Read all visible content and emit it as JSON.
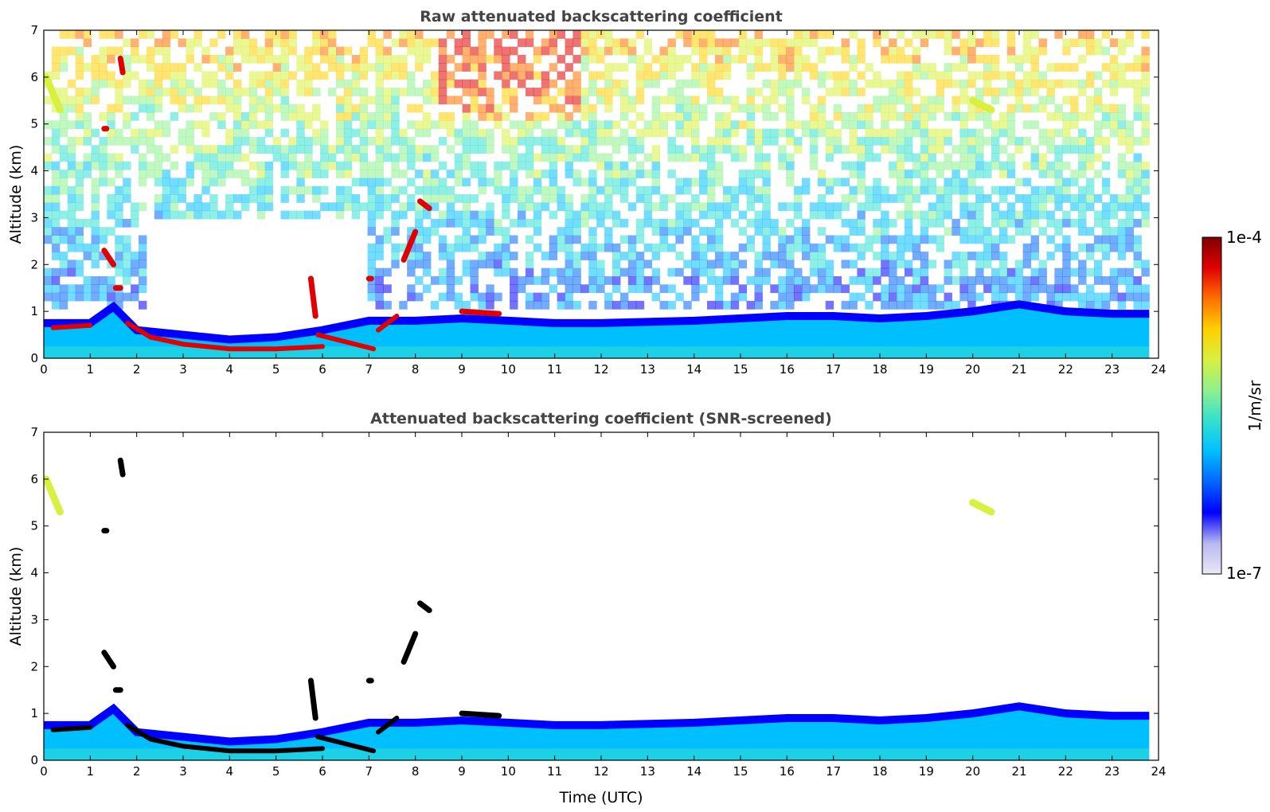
{
  "colors": {
    "colormap": [
      "#e8e8f8",
      "#b8b8f0",
      "#0000ff",
      "#0066ff",
      "#00bfff",
      "#33e0d0",
      "#8ef08e",
      "#d8f040",
      "#ffd000",
      "#ff7000",
      "#e00000",
      "#800000"
    ],
    "below_threshold": "#000000",
    "background": "#ffffff"
  },
  "chart_data": [
    {
      "type": "heatmap",
      "title": "Raw attenuated backscattering coefficient",
      "xlabel": "",
      "ylabel": "Altitude (km)",
      "xlim": [
        0,
        24
      ],
      "ylim": [
        0,
        7
      ],
      "x_ticks": [
        "0",
        "1",
        "2",
        "3",
        "4",
        "5",
        "6",
        "7",
        "8",
        "9",
        "10",
        "11",
        "12",
        "13",
        "14",
        "15",
        "16",
        "17",
        "18",
        "19",
        "20",
        "21",
        "22",
        "23",
        "24"
      ],
      "y_ticks": [
        "0",
        "1",
        "2",
        "3",
        "4",
        "5",
        "6",
        "7"
      ],
      "data_extent_hours": [
        0,
        23.8
      ],
      "boundary_layer_top_km": [
        [
          0,
          0.75
        ],
        [
          1,
          0.75
        ],
        [
          1.5,
          1.1
        ],
        [
          2,
          0.6
        ],
        [
          3,
          0.5
        ],
        [
          4,
          0.4
        ],
        [
          5,
          0.45
        ],
        [
          6,
          0.6
        ],
        [
          7,
          0.8
        ],
        [
          8,
          0.8
        ],
        [
          9,
          0.85
        ],
        [
          10,
          0.8
        ],
        [
          11,
          0.75
        ],
        [
          12,
          0.75
        ],
        [
          14,
          0.8
        ],
        [
          16,
          0.9
        ],
        [
          17,
          0.9
        ],
        [
          18,
          0.85
        ],
        [
          19,
          0.9
        ],
        [
          20,
          1.0
        ],
        [
          21,
          1.15
        ],
        [
          22,
          1.0
        ],
        [
          23,
          0.95
        ],
        [
          23.8,
          0.95
        ]
      ],
      "features": [
        {
          "kind": "aerosol_layer",
          "points_km": [
            [
              0.2,
              0.65
            ],
            [
              1.0,
              0.7
            ]
          ]
        },
        {
          "kind": "aerosol_layer",
          "points_km": [
            [
              1.8,
              0.75
            ],
            [
              2.3,
              0.45
            ],
            [
              3,
              0.3
            ],
            [
              4,
              0.2
            ],
            [
              5,
              0.2
            ],
            [
              6,
              0.25
            ]
          ]
        },
        {
          "kind": "aerosol_layer",
          "points_km": [
            [
              5.9,
              0.5
            ],
            [
              6.5,
              0.35
            ],
            [
              7.1,
              0.2
            ]
          ]
        },
        {
          "kind": "aerosol_layer",
          "points_km": [
            [
              7.2,
              0.6
            ],
            [
              7.6,
              0.9
            ]
          ]
        },
        {
          "kind": "cloud",
          "points_km": [
            [
              1.3,
              2.3
            ],
            [
              1.5,
              2.0
            ]
          ]
        },
        {
          "kind": "cloud",
          "points_km": [
            [
              1.55,
              1.5
            ],
            [
              1.65,
              1.5
            ]
          ]
        },
        {
          "kind": "cloud",
          "points_km": [
            [
              1.65,
              6.4
            ],
            [
              1.7,
              6.1
            ]
          ]
        },
        {
          "kind": "cloud",
          "points_km": [
            [
              1.3,
              4.9
            ],
            [
              1.35,
              4.9
            ]
          ]
        },
        {
          "kind": "cloud",
          "points_km": [
            [
              7.75,
              2.1
            ],
            [
              8.0,
              2.7
            ]
          ]
        },
        {
          "kind": "cloud",
          "points_km": [
            [
              8.1,
              3.35
            ],
            [
              8.3,
              3.2
            ]
          ]
        },
        {
          "kind": "cloud",
          "points_km": [
            [
              9.0,
              1.0
            ],
            [
              9.8,
              0.95
            ]
          ]
        },
        {
          "kind": "cloud",
          "points_km": [
            [
              5.75,
              1.7
            ],
            [
              5.85,
              0.9
            ]
          ]
        },
        {
          "kind": "cloud",
          "points_km": [
            [
              7.0,
              1.7
            ],
            [
              7.05,
              1.7
            ]
          ]
        },
        {
          "kind": "cirrus",
          "points_km": [
            [
              0.05,
              6.0
            ],
            [
              0.35,
              5.3
            ]
          ]
        },
        {
          "kind": "cirrus",
          "points_km": [
            [
              20.0,
              5.5
            ],
            [
              20.4,
              5.3
            ]
          ]
        }
      ]
    },
    {
      "type": "heatmap",
      "title": "Attenuated backscattering coefficient (SNR-screened)",
      "xlabel": "Time (UTC)",
      "ylabel": "Altitude (km)",
      "xlim": [
        0,
        24
      ],
      "ylim": [
        0,
        7
      ],
      "x_ticks": [
        "0",
        "1",
        "2",
        "3",
        "4",
        "5",
        "6",
        "7",
        "8",
        "9",
        "10",
        "11",
        "12",
        "13",
        "14",
        "15",
        "16",
        "17",
        "18",
        "19",
        "20",
        "21",
        "22",
        "23",
        "24"
      ],
      "y_ticks": [
        "0",
        "1",
        "2",
        "3",
        "4",
        "5",
        "6",
        "7"
      ],
      "data_extent_hours": [
        0,
        23.8
      ]
    }
  ],
  "colorbar": {
    "max_label": "1e-4",
    "min_label": "1e-7",
    "label": "1/m/sr",
    "scale": "log"
  }
}
